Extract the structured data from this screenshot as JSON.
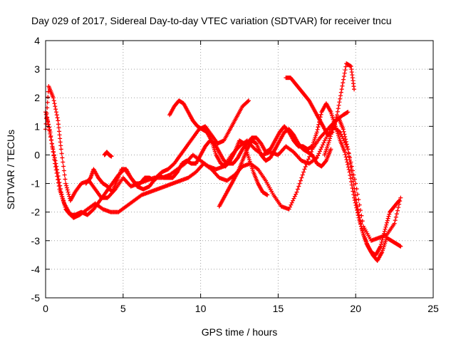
{
  "chart_data": {
    "type": "scatter",
    "title": "Day 029 of 2017, Sidereal Day-to-day VTEC variation (SDTVAR) for receiver tncu",
    "xlabel": "GPS time / hours",
    "ylabel": "SDTVAR / TECUs",
    "xlim": [
      0,
      25
    ],
    "ylim": [
      -5,
      4
    ],
    "xticks": [
      "0",
      "5",
      "10",
      "15",
      "20",
      "25"
    ],
    "yticks": [
      "4",
      "3",
      "2",
      "1",
      "0",
      "-1",
      "-2",
      "-3",
      "-4",
      "-5"
    ],
    "grid": true,
    "marker": "+",
    "series": [
      {
        "color": "#ff0000",
        "x": [
          0.0,
          0.2,
          0.5,
          0.8,
          1.0,
          1.3,
          1.6,
          1.9,
          2.3,
          2.8,
          3.2,
          3.6,
          4.0,
          4.5,
          5.0,
          5.5,
          6.0,
          6.5,
          7.0,
          7.5,
          8.0,
          8.5,
          9.0,
          9.5,
          10.0,
          10.5,
          11.0,
          11.5,
          12.0,
          12.5,
          13.0,
          13.5,
          14.0,
          14.5,
          15.0,
          15.5,
          16.0,
          16.5,
          17.0,
          17.5,
          18.0,
          18.5,
          19.0,
          19.5,
          20.0,
          20.5,
          21.0,
          21.5,
          22.0,
          22.5,
          22.9
        ],
        "y": [
          0.9,
          2.4,
          2.0,
          1.2,
          0.2,
          -1.0,
          -1.6,
          -1.3,
          -1.0,
          -0.9,
          -1.2,
          -1.5,
          -1.5,
          -1.2,
          -0.8,
          -1.1,
          -1.0,
          -0.9,
          -0.8,
          -0.8,
          -0.7,
          -0.5,
          -0.3,
          0.0,
          -0.2,
          -0.4,
          -0.5,
          -0.4,
          0.0,
          0.3,
          0.5,
          0.2,
          0.0,
          0.1,
          0.0,
          0.3,
          0.1,
          -0.2,
          -0.3,
          -0.1,
          0.5,
          1.0,
          0.8,
          0.2,
          -1.0,
          -2.5,
          -3.0,
          -2.9,
          -2.8,
          -2.4,
          -1.5
        ]
      },
      {
        "color": "#ff0000",
        "x": [
          0.0,
          0.3,
          0.6,
          0.9,
          1.2,
          1.5,
          1.8,
          2.2,
          2.7,
          3.2,
          3.7,
          4.2,
          4.7,
          5.2,
          5.7,
          6.2,
          6.7,
          7.2,
          7.7,
          8.2,
          8.7,
          9.2,
          9.7,
          10.2,
          10.7,
          11.2,
          11.7,
          12.2,
          12.7,
          13.2,
          13.7,
          14.2,
          14.7,
          15.2,
          15.7,
          16.2,
          16.7,
          17.2,
          17.7,
          18.2,
          18.7,
          19.2,
          19.5
        ],
        "y": [
          1.5,
          0.8,
          -0.3,
          -1.2,
          -1.7,
          -2.0,
          -2.2,
          -2.1,
          -1.9,
          -1.7,
          -1.9,
          -2.0,
          -2.0,
          -1.8,
          -1.6,
          -1.4,
          -1.3,
          -1.2,
          -1.1,
          -1.0,
          -0.9,
          -0.8,
          -0.6,
          -0.3,
          -0.5,
          -0.8,
          -0.9,
          -0.7,
          -0.4,
          -0.3,
          -0.5,
          -0.9,
          -1.4,
          -1.8,
          -1.9,
          -1.3,
          -0.5,
          0.2,
          0.6,
          0.9,
          1.2,
          1.4,
          1.5
        ]
      },
      {
        "color": "#ff0000",
        "x": [
          0.1,
          0.4,
          0.7,
          1.0,
          1.3,
          1.6,
          1.9,
          2.3,
          2.7,
          3.1,
          3.5,
          3.9,
          4.3,
          4.7,
          5.1,
          5.5,
          5.9,
          6.3,
          6.7,
          7.1,
          7.5,
          7.9,
          8.3,
          8.7,
          9.1,
          9.5,
          9.9,
          10.3,
          10.7,
          11.1,
          11.5,
          11.9,
          12.3,
          12.7,
          13.1
        ],
        "y": [
          1.3,
          0.4,
          -0.4,
          -1.3,
          -1.9,
          -2.1,
          -2.1,
          -2.0,
          -2.1,
          -1.9,
          -1.6,
          -1.3,
          -1.0,
          -0.7,
          -0.5,
          -0.8,
          -1.1,
          -1.2,
          -1.1,
          -0.8,
          -0.6,
          -0.5,
          -0.3,
          0.0,
          0.3,
          0.6,
          0.9,
          1.0,
          0.7,
          0.4,
          0.5,
          0.9,
          1.3,
          1.7,
          1.9
        ]
      },
      {
        "color": "#ff0000",
        "x": [
          2.6,
          2.9,
          3.1,
          3.4,
          3.7,
          4.0,
          4.3,
          4.6,
          4.9,
          5.2,
          5.5,
          5.8,
          6.1,
          6.4,
          6.7,
          7.0,
          7.3,
          7.6,
          7.9,
          8.2,
          8.5,
          8.8,
          9.1,
          9.4,
          9.7,
          10.0,
          10.3,
          10.6,
          10.9,
          11.2,
          11.5,
          11.8,
          12.1,
          12.4,
          12.7,
          13.0,
          13.3,
          13.6,
          13.9,
          14.2,
          14.5,
          14.8,
          15.1,
          15.4,
          15.7,
          16.0,
          16.3,
          16.6,
          16.9,
          17.2,
          17.5,
          17.8,
          18.1,
          18.4,
          18.7,
          19.0,
          19.3,
          19.6,
          19.9,
          20.2,
          20.5,
          20.8,
          21.1,
          21.4,
          21.7,
          22.0,
          22.3,
          22.6,
          22.9
        ],
        "y": [
          -1.0,
          -0.8,
          -0.5,
          -0.8,
          -1.0,
          -1.1,
          -1.3,
          -0.9,
          -0.5,
          -0.5,
          -0.8,
          -1.0,
          -1.0,
          -0.8,
          -0.8,
          -0.9,
          -0.7,
          -0.8,
          -0.8,
          -0.8,
          -0.6,
          -0.3,
          -0.2,
          -0.3,
          -0.3,
          0.0,
          0.3,
          0.5,
          0.4,
          0.1,
          -0.2,
          -0.3,
          -0.3,
          -0.1,
          0.2,
          0.4,
          0.6,
          0.6,
          0.4,
          0.1,
          0.2,
          0.5,
          0.8,
          1.0,
          0.8,
          0.5,
          0.3,
          0.3,
          0.2,
          0.3,
          0.8,
          1.5,
          1.8,
          1.5,
          1.0,
          0.5,
          0.1,
          -0.6,
          -1.5,
          -2.2,
          -2.8,
          -3.2,
          -3.5,
          -3.7,
          -3.4,
          -2.9,
          -3.0,
          -3.1,
          -3.2
        ]
      },
      {
        "color": "#ff0000",
        "x": [
          11.2,
          11.5,
          11.8,
          12.1,
          12.4,
          12.7,
          13.0,
          13.3,
          13.6,
          13.9,
          14.2,
          14.5,
          14.8,
          15.1,
          15.4,
          15.7,
          16.0,
          16.3,
          16.6,
          16.9,
          17.2,
          17.5,
          17.8,
          18.1,
          18.4
        ],
        "y": [
          -1.8,
          -1.5,
          -1.2,
          -0.9,
          -0.6,
          -0.2,
          0.2,
          0.5,
          0.4,
          0.0,
          -0.2,
          -0.1,
          0.2,
          0.5,
          0.8,
          0.9,
          0.7,
          0.4,
          0.2,
          0.1,
          0.0,
          -0.3,
          -0.4,
          -0.2,
          0.2
        ]
      },
      {
        "color": "#ff0000",
        "x": [
          8.0,
          8.3,
          8.6,
          8.9,
          9.2,
          9.5,
          9.8,
          10.1,
          10.4,
          10.7,
          11.0,
          11.3,
          11.6,
          11.9,
          12.2,
          12.5,
          12.8,
          13.1,
          13.4,
          13.7,
          14.0,
          14.3
        ],
        "y": [
          1.4,
          1.7,
          1.9,
          1.8,
          1.5,
          1.2,
          1.0,
          0.9,
          0.8,
          0.5,
          0.0,
          -0.3,
          -0.4,
          -0.2,
          0.1,
          0.5,
          0.4,
          -0.1,
          -0.6,
          -1.0,
          -1.3,
          -1.4
        ]
      },
      {
        "color": "#ff0000",
        "x": [
          15.5,
          15.8,
          16.1,
          16.4,
          16.7,
          17.0,
          17.3,
          17.6,
          17.9,
          18.2,
          18.5,
          18.8,
          19.1,
          19.4,
          19.7,
          19.9
        ],
        "y": [
          2.7,
          2.7,
          2.5,
          2.3,
          2.1,
          1.9,
          1.6,
          1.3,
          1.0,
          0.7,
          0.8,
          1.4,
          2.3,
          3.2,
          3.1,
          2.3
        ]
      },
      {
        "color": "#ff0000",
        "x": [
          3.8,
          3.95,
          4.1,
          4.25
        ],
        "y": [
          0.0,
          0.1,
          0.0,
          -0.05
        ]
      },
      {
        "color": "#ff0000",
        "x": [
          18.0,
          18.3,
          18.6,
          18.9,
          19.2,
          19.5,
          19.8,
          20.1,
          20.4,
          20.7,
          21.0,
          21.3,
          21.6,
          21.9,
          22.2,
          22.5,
          22.8
        ],
        "y": [
          0.0,
          0.5,
          1.1,
          1.3,
          0.9,
          0.2,
          -0.8,
          -1.8,
          -2.6,
          -3.1,
          -3.4,
          -3.5,
          -3.2,
          -2.6,
          -2.0,
          -1.8,
          -1.6
        ]
      }
    ]
  }
}
